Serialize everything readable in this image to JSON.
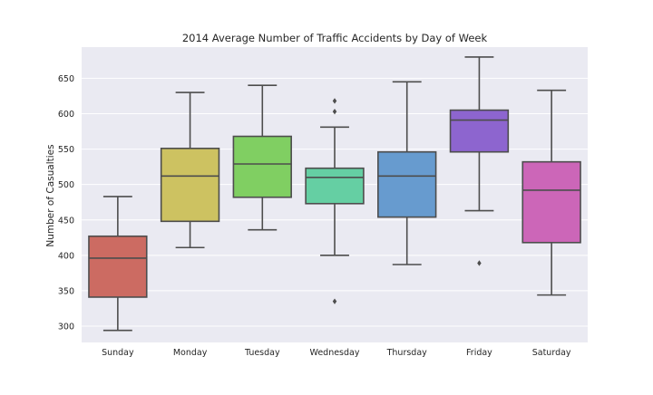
{
  "chart_data": {
    "type": "boxplot",
    "title": "2014 Average Number of Traffic Accidents by Day of Week",
    "xlabel": "",
    "ylabel": "Number of Casualties",
    "ylim": [
      277,
      694
    ],
    "yticks": [
      300,
      350,
      400,
      450,
      500,
      550,
      600,
      650
    ],
    "grid": true,
    "categories": [
      "Sunday",
      "Monday",
      "Tuesday",
      "Wednesday",
      "Thursday",
      "Friday",
      "Saturday"
    ],
    "boxes": [
      {
        "category": "Sunday",
        "color": "#cc6b62",
        "whislo": 294,
        "q1": 341,
        "med": 396,
        "q3": 427,
        "whishi": 483,
        "fliers": []
      },
      {
        "category": "Monday",
        "color": "#cdc261",
        "whislo": 411,
        "q1": 448,
        "med": 512,
        "q3": 551,
        "whishi": 630,
        "fliers": []
      },
      {
        "category": "Tuesday",
        "color": "#80cf62",
        "whislo": 436,
        "q1": 482,
        "med": 529,
        "q3": 568,
        "whishi": 640,
        "fliers": []
      },
      {
        "category": "Wednesday",
        "color": "#65cfa3",
        "whislo": 400,
        "q1": 473,
        "med": 510,
        "q3": 523,
        "whishi": 581,
        "fliers": [
          618,
          603,
          335
        ]
      },
      {
        "category": "Thursday",
        "color": "#679bcf",
        "whislo": 387,
        "q1": 454,
        "med": 512,
        "q3": 546,
        "whishi": 645,
        "fliers": []
      },
      {
        "category": "Friday",
        "color": "#8d65cf",
        "whislo": 463,
        "q1": 546,
        "med": 591,
        "q3": 605,
        "whishi": 680,
        "fliers": [
          389
        ]
      },
      {
        "category": "Saturday",
        "color": "#cc66b8",
        "whislo": 344,
        "q1": 418,
        "med": 492,
        "q3": 532,
        "whishi": 633,
        "fliers": []
      }
    ],
    "colors": {
      "plot_background": "#eaeaf2",
      "grid": "#ffffff",
      "line": "#4d4d4d",
      "text": "#262626"
    }
  }
}
